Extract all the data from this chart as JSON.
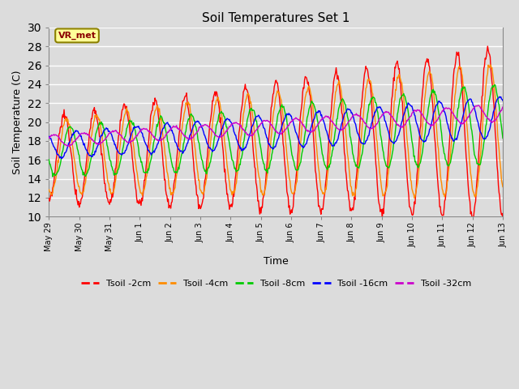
{
  "title": "Soil Temperatures Set 1",
  "xlabel": "Time",
  "ylabel": "Soil Temperature (C)",
  "ylim": [
    10,
    30
  ],
  "background_color": "#dcdcdc",
  "plot_bg_color": "#dcdcdc",
  "annotation_text": "VR_met",
  "annotation_bg": "#ffff99",
  "annotation_border": "#8b8000",
  "annotation_text_color": "#8b0000",
  "tick_labels": [
    "May 29",
    "May 30",
    "May 31",
    "Jun 1",
    "Jun 2",
    "Jun 3",
    "Jun 4",
    "Jun 5",
    "Jun 6",
    "Jun 7",
    "Jun 8",
    "Jun 9",
    "Jun 10",
    "Jun 11",
    "Jun 12",
    "Jun 13"
  ],
  "tick_positions": [
    0,
    1,
    2,
    3,
    4,
    5,
    6,
    7,
    8,
    9,
    10,
    11,
    12,
    13,
    14,
    15
  ],
  "series": [
    {
      "label": "Tsoil -2cm",
      "color": "#ff0000"
    },
    {
      "label": "Tsoil -4cm",
      "color": "#ff8c00"
    },
    {
      "label": "Tsoil -8cm",
      "color": "#00cc00"
    },
    {
      "label": "Tsoil -16cm",
      "color": "#0000ff"
    },
    {
      "label": "Tsoil -32cm",
      "color": "#cc00cc"
    }
  ]
}
